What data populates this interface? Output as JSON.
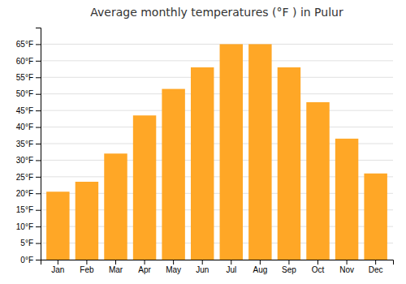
{
  "chart_data": {
    "type": "bar",
    "title": "Average monthly temperatures (°F ) in Pulur",
    "categories": [
      "Jan",
      "Feb",
      "Mar",
      "Apr",
      "May",
      "Jun",
      "Jul",
      "Aug",
      "Sep",
      "Oct",
      "Nov",
      "Dec"
    ],
    "values": [
      20.5,
      23.5,
      32.0,
      43.5,
      51.5,
      58.0,
      65.0,
      65.0,
      58.0,
      47.5,
      36.5,
      26.0
    ],
    "color": "#FFA726",
    "ylim": [
      0,
      70
    ],
    "yticks": [
      {
        "value": 0,
        "label": "0°F"
      },
      {
        "value": 5,
        "label": "5°F"
      },
      {
        "value": 10,
        "label": "10°F"
      },
      {
        "value": 15,
        "label": "15°F"
      },
      {
        "value": 20,
        "label": "20°F"
      },
      {
        "value": 25,
        "label": "25°F"
      },
      {
        "value": 30,
        "label": "30°F"
      },
      {
        "value": 35,
        "label": "35°F"
      },
      {
        "value": 40,
        "label": "40°F"
      },
      {
        "value": 45,
        "label": "45°F"
      },
      {
        "value": 50,
        "label": "50°F"
      },
      {
        "value": 55,
        "label": "55°F"
      },
      {
        "value": 60,
        "label": "60°F"
      },
      {
        "value": 65,
        "label": "65°F"
      }
    ],
    "grid": true
  }
}
